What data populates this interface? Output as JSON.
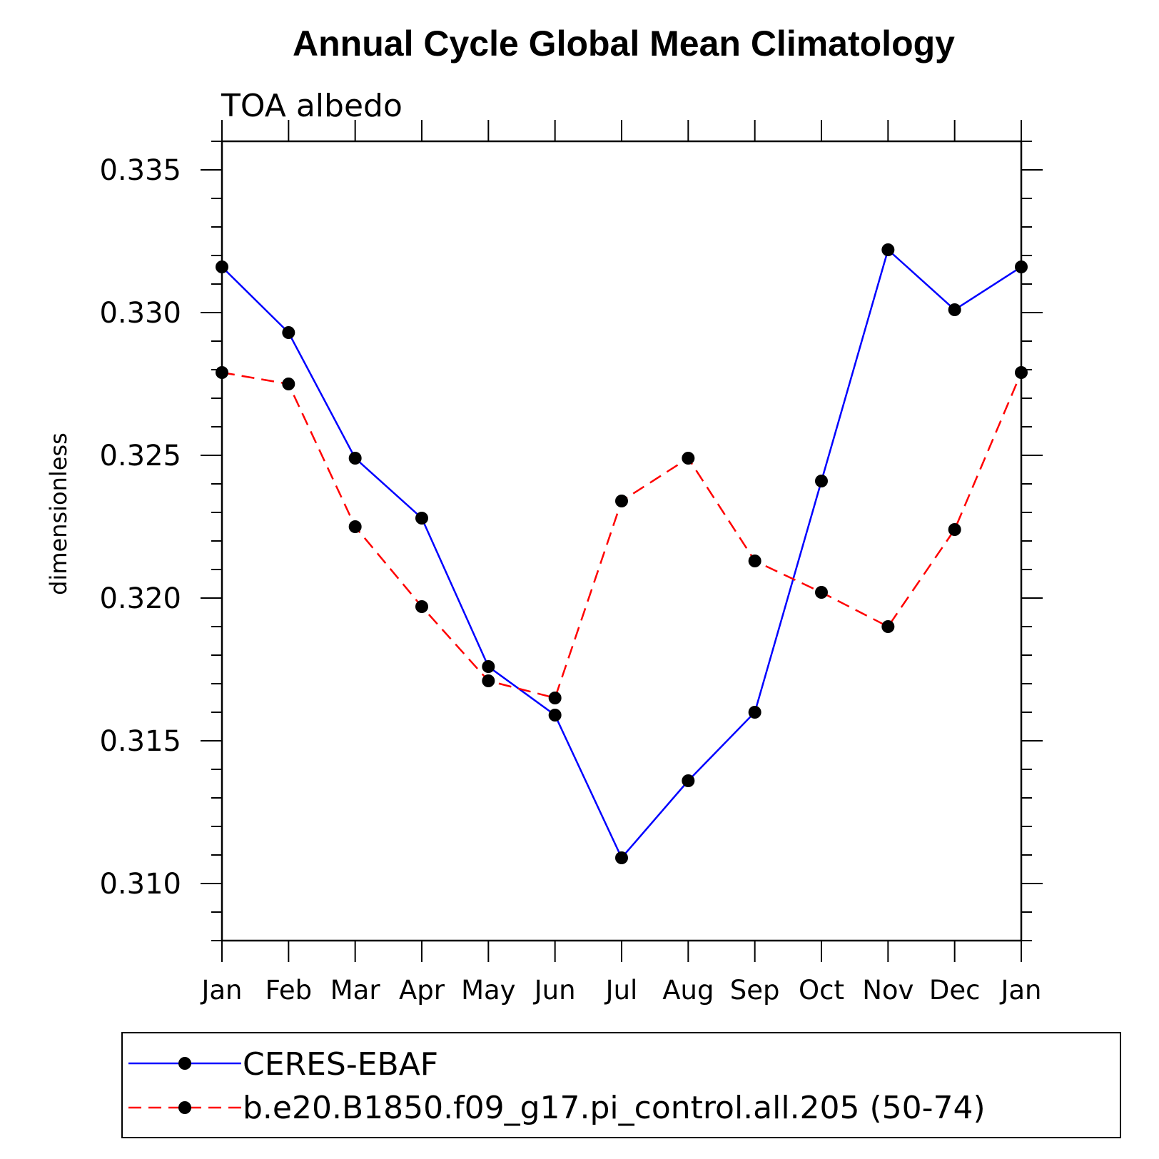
{
  "chart_data": {
    "type": "line",
    "title": "Annual Cycle Global Mean Climatology",
    "subtitle": "TOA albedo",
    "ylabel": "dimensionless",
    "xlabel": "",
    "categories": [
      "Jan",
      "Feb",
      "Mar",
      "Apr",
      "May",
      "Jun",
      "Jul",
      "Aug",
      "Sep",
      "Oct",
      "Nov",
      "Dec",
      "Jan"
    ],
    "ylim": [
      0.308,
      0.336
    ],
    "yticks": [
      "0.310",
      "0.315",
      "0.320",
      "0.325",
      "0.330",
      "0.335"
    ],
    "grid": false,
    "legend_position": "bottom",
    "series": [
      {
        "name": "CERES-EBAF",
        "color": "#0000ff",
        "line_style": "solid",
        "marker": "filled-circle",
        "values": [
          0.3316,
          0.3293,
          0.3249,
          0.3228,
          0.3176,
          0.3159,
          0.3109,
          0.3136,
          0.316,
          0.3241,
          0.3322,
          0.3301,
          0.3316
        ]
      },
      {
        "name": "b.e20.B1850.f09_g17.pi_control.all.205 (50-74)",
        "color": "#ff0000",
        "line_style": "dashed",
        "marker": "filled-circle",
        "values": [
          0.3279,
          0.3275,
          0.3225,
          0.3197,
          0.3171,
          0.3165,
          0.3234,
          0.3249,
          0.3213,
          0.3202,
          0.319,
          0.3224,
          0.3279
        ]
      }
    ]
  }
}
